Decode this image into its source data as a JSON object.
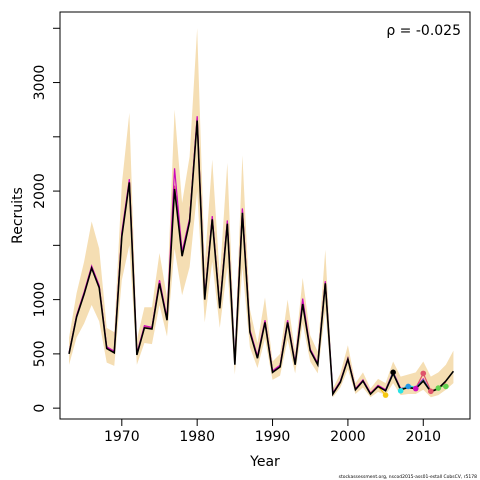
{
  "chart_data": {
    "type": "line",
    "title": "",
    "xlabel": "Year",
    "ylabel": "Recruits",
    "annotation": "ρ = -0.025",
    "footer": "stockassessment.org, nscod2015-ass01-estall CobsCV, r5178",
    "xlim": [
      1961.8,
      2016.2
    ],
    "ylim": [
      -100,
      3650
    ],
    "x_ticks": [
      1970,
      1980,
      1990,
      2000,
      2010
    ],
    "y_ticks": [
      0,
      500,
      1000,
      2000,
      3000
    ],
    "y_minor_ticks": [
      0,
      500,
      1000,
      1500,
      2000,
      2500,
      3000,
      3500
    ],
    "band_color": "#F5DEB3",
    "colors": {
      "main": "#000000",
      "retro1": "#DF536B",
      "retro2": "#61D04F",
      "retro3": "#2297E6",
      "retro4": "#28E2E5",
      "retro5": "#CD0BBC",
      "retro6": "#F5C710"
    },
    "x": [
      1963,
      1964,
      1965,
      1966,
      1967,
      1968,
      1969,
      1970,
      1971,
      1972,
      1973,
      1974,
      1975,
      1976,
      1977,
      1978,
      1979,
      1980,
      1981,
      1982,
      1983,
      1984,
      1985,
      1986,
      1987,
      1988,
      1989,
      1990,
      1991,
      1992,
      1993,
      1994,
      1995,
      1996,
      1997,
      1998,
      1999,
      2000,
      2001,
      2002,
      2003,
      2004,
      2005,
      2006,
      2007,
      2008,
      2009,
      2010,
      2011,
      2012,
      2013,
      2014
    ],
    "series": [
      {
        "values": [
          500,
          840,
          1050,
          1290,
          1110,
          550,
          510,
          1580,
          2080,
          490,
          740,
          730,
          1150,
          810,
          2020,
          1400,
          1720,
          2650,
          1000,
          1740,
          920,
          1700,
          400,
          1800,
          700,
          460,
          790,
          330,
          380,
          790,
          400,
          960,
          530,
          400,
          1150,
          130,
          240,
          450,
          170,
          250,
          130,
          200,
          160,
          320,
          170,
          190,
          180,
          250,
          150,
          180,
          250,
          340
        ],
        "lower": [
          400,
          650,
          780,
          950,
          800,
          420,
          390,
          1180,
          1500,
          400,
          600,
          590,
          950,
          660,
          1470,
          1040,
          1300,
          2000,
          790,
          1350,
          740,
          1300,
          310,
          1300,
          560,
          370,
          640,
          260,
          300,
          630,
          320,
          780,
          430,
          320,
          900,
          100,
          190,
          360,
          130,
          190,
          100,
          150,
          120,
          230,
          120,
          130,
          130,
          170,
          100,
          120,
          170,
          230
        ],
        "upper": [
          650,
          1060,
          1350,
          1720,
          1470,
          740,
          700,
          2060,
          2720,
          630,
          930,
          930,
          1430,
          1020,
          2750,
          1890,
          2320,
          3500,
          1320,
          2290,
          1210,
          2260,
          540,
          2330,
          910,
          600,
          1020,
          430,
          500,
          1000,
          520,
          1200,
          670,
          520,
          1460,
          180,
          320,
          580,
          230,
          330,
          180,
          270,
          230,
          430,
          290,
          310,
          330,
          430,
          290,
          330,
          400,
          530
        ]
      },
      {
        "name": "",
        "color_key": "retro1",
        "x": [
          1963,
          1964,
          1965,
          1966,
          1967,
          1968,
          1969,
          1970,
          1971,
          1972,
          1973,
          1974,
          1975,
          1976,
          1977,
          1978,
          1979,
          1980,
          1981,
          1982,
          1983,
          1984,
          1985,
          1986,
          1987,
          1988,
          1989,
          1990,
          1991,
          1992,
          1993,
          1994,
          1995,
          1996,
          1997,
          1998,
          1999,
          2000,
          2001,
          2002,
          2003,
          2004,
          2005,
          2006,
          2007,
          2008,
          2009,
          2010,
          2011,
          2012,
          2013
        ],
        "values": [
          510,
          850,
          1060,
          1300,
          1120,
          560,
          520,
          1600,
          2100,
          500,
          750,
          740,
          1170,
          820,
          2050,
          1420,
          1740,
          2680,
          1010,
          1760,
          930,
          1720,
          410,
          1830,
          710,
          470,
          800,
          340,
          390,
          800,
          410,
          970,
          540,
          410,
          1160,
          135,
          245,
          455,
          175,
          255,
          135,
          205,
          165,
          330,
          175,
          195,
          185,
          320,
          160,
          185,
          240
        ]
      },
      {
        "name": "",
        "color_key": "retro5",
        "x": [
          1963,
          1964,
          1965,
          1966,
          1967,
          1968,
          1969,
          1970,
          1971,
          1972,
          1973,
          1974,
          1975,
          1976,
          1977,
          1978,
          1979,
          1980,
          1981,
          1982,
          1983,
          1984,
          1985,
          1986,
          1987,
          1988,
          1989,
          1990,
          1991,
          1992,
          1993,
          1994,
          1995,
          1996,
          1997,
          1998,
          1999,
          2000,
          2001,
          2002,
          2003,
          2004,
          2005,
          2006,
          2007,
          2008,
          2009,
          2010,
          2011,
          2012
        ],
        "values": [
          505,
          855,
          1070,
          1310,
          1130,
          565,
          525,
          1620,
          2110,
          505,
          760,
          745,
          1180,
          830,
          2210,
          1440,
          1750,
          2690,
          1020,
          1770,
          940,
          1730,
          420,
          1840,
          720,
          480,
          810,
          345,
          395,
          810,
          415,
          1010,
          545,
          415,
          1170,
          140,
          250,
          460,
          180,
          260,
          140,
          210,
          170,
          335,
          180,
          200,
          190,
          270,
          150,
          185
        ]
      },
      {
        "name": "",
        "color_key": "retro3",
        "x": [
          2005,
          2006,
          2007,
          2008,
          2009,
          2010,
          2011
        ],
        "values": [
          160,
          330,
          160,
          200,
          185,
          260,
          155
        ]
      },
      {
        "name": "",
        "color_key": "retro4",
        "x": [
          2005,
          2006,
          2007,
          2008,
          2009,
          2010
        ],
        "values": [
          160,
          325,
          170,
          210,
          190,
          250
        ]
      },
      {
        "name": "",
        "color_key": "retro2",
        "x": [
          2005,
          2006,
          2007,
          2008,
          2009,
          2010,
          2011,
          2012,
          2013
        ],
        "values": [
          160,
          320,
          165,
          195,
          180,
          255,
          150,
          190,
          210
        ]
      },
      {
        "name": "",
        "color_key": "retro6",
        "x": [
          2003,
          2004,
          2005
        ],
        "values": [
          135,
          200,
          120
        ]
      }
    ],
    "endpoints": [
      {
        "x": 2013,
        "y": 200,
        "color_key": "retro2"
      },
      {
        "x": 2012,
        "y": 185,
        "color_key": "retro2"
      },
      {
        "x": 2011,
        "y": 155,
        "color_key": "retro1"
      },
      {
        "x": 2010,
        "y": 320,
        "color_key": "retro1"
      },
      {
        "x": 2009,
        "y": 180,
        "color_key": "retro5"
      },
      {
        "x": 2008,
        "y": 200,
        "color_key": "retro3"
      },
      {
        "x": 2007,
        "y": 160,
        "color_key": "retro4"
      },
      {
        "x": 2006,
        "y": 330,
        "color_key": "main"
      },
      {
        "x": 2005,
        "y": 120,
        "color_key": "retro6"
      }
    ]
  }
}
